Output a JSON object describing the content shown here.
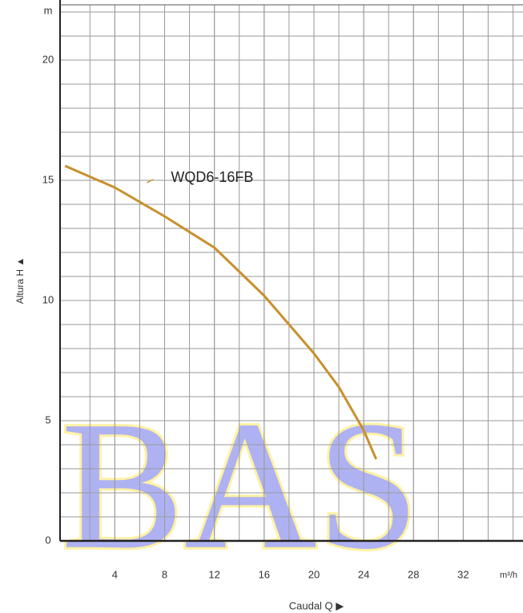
{
  "chart_data": {
    "type": "line",
    "watermark": "BAS",
    "y_unit": "m",
    "x_unit": "m³/h",
    "ylabel": "Altura  H ▲",
    "xlabel": "Caudal  Q ▶",
    "x": [
      0,
      4,
      8,
      12,
      16,
      20,
      22,
      24,
      25
    ],
    "series": [
      {
        "name": "WQD6-16FB",
        "color": "#c8902e",
        "values": [
          15.6,
          14.7,
          13.5,
          12.2,
          10.2,
          7.8,
          6.4,
          4.6,
          3.4
        ]
      }
    ],
    "xlim": [
      -0.4,
      36.8
    ],
    "xticks": [
      4,
      8,
      12,
      16,
      20,
      24,
      28,
      32
    ],
    "ylim": [
      0,
      22.3
    ],
    "yticks": [
      0,
      5,
      10,
      15,
      20
    ],
    "grid": true
  }
}
